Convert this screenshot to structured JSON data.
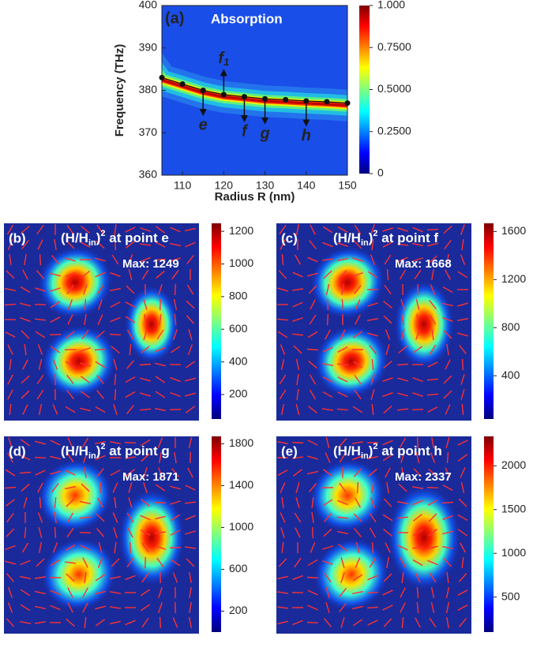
{
  "chart_data": [
    {
      "type": "absorption_map",
      "panel": "(a)",
      "title": "Absorption",
      "x_label": "Radius R (nm)",
      "y_label": "Frequency (THz)",
      "x": [
        105,
        110,
        115,
        120,
        125,
        130,
        135,
        140,
        145,
        150
      ],
      "values": [
        383,
        381.5,
        380,
        379,
        378.5,
        378,
        377.8,
        377.5,
        377.3,
        377
      ],
      "xlim": [
        105,
        150
      ],
      "xticks": [
        110,
        120,
        130,
        140,
        150
      ],
      "ylim": [
        360,
        400
      ],
      "yticks": [
        360,
        370,
        380,
        390,
        400
      ],
      "zlim": [
        0,
        1
      ],
      "zticks": [
        {
          "value": 0,
          "label": "0"
        },
        {
          "value": 0.25,
          "label": "0.2500"
        },
        {
          "value": 0.5,
          "label": "0.5000"
        },
        {
          "value": 0.75,
          "label": "0.7500"
        },
        {
          "value": 1,
          "label": "1.000"
        }
      ],
      "annotations": [
        {
          "text": "f",
          "sub": "1",
          "x": 120,
          "dir": "up"
        },
        {
          "text": "e",
          "x": 115,
          "dir": "down"
        },
        {
          "text": "f",
          "x": 125,
          "dir": "down"
        },
        {
          "text": "g",
          "x": 130,
          "dir": "down"
        },
        {
          "text": "h",
          "x": 140,
          "dir": "down"
        }
      ]
    },
    {
      "type": "field_map",
      "panel": "(b)",
      "title_parts": [
        "(H/H",
        "in",
        ")",
        "2",
        " at point e"
      ],
      "max_label": "Max: 1249",
      "zlim": [
        50,
        1249
      ],
      "zticks": [
        200,
        400,
        600,
        800,
        1000,
        1200
      ]
    },
    {
      "type": "field_map",
      "panel": "(c)",
      "title_parts": [
        "(H/H",
        "in",
        ")",
        "2",
        " at point f"
      ],
      "max_label": "Max: 1668",
      "zlim": [
        40,
        1668
      ],
      "zticks": [
        400,
        800,
        1200,
        1600
      ]
    },
    {
      "type": "field_map",
      "panel": "(d)",
      "title_parts": [
        "(H/H",
        "in",
        ")",
        "2",
        " at point g"
      ],
      "max_label": "Max: 1871",
      "zlim": [
        0,
        1871
      ],
      "zticks": [
        200,
        600,
        1000,
        1400,
        1800
      ]
    },
    {
      "type": "field_map",
      "panel": "(e)",
      "title_parts": [
        "(H/H",
        "in",
        ")",
        "2",
        " at point h"
      ],
      "max_label": "Max: 2337",
      "zlim": [
        100,
        2337
      ],
      "zticks": [
        500,
        1000,
        1500,
        2000
      ]
    }
  ]
}
